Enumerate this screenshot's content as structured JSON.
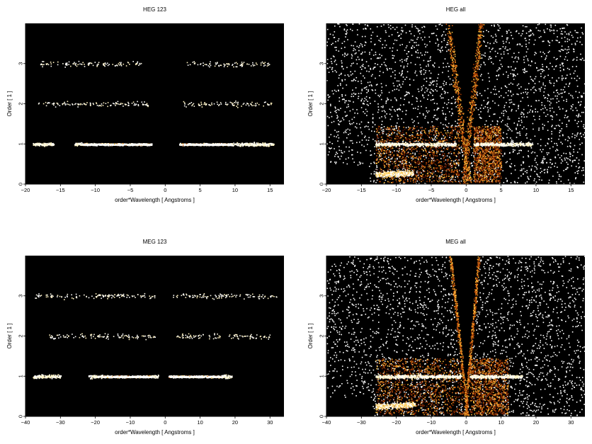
{
  "chart_data": [
    {
      "type": "heatmap",
      "title": "HEG 123",
      "xlabel": "order*Wavelength [ Angstroms ]",
      "ylabel": "Order [ 1 ]",
      "xlim": [
        -20,
        17
      ],
      "ylim": [
        0,
        4
      ],
      "xticks": [
        -20,
        -15,
        -10,
        -5,
        0,
        5,
        10,
        15
      ],
      "yticks": [
        0,
        1,
        2,
        3
      ],
      "background": "#000000",
      "bands": [
        {
          "order": 1,
          "x_ranges": [
            [
              -19,
              -16
            ],
            [
              -13,
              -2
            ],
            [
              2,
              15.5
            ]
          ],
          "dense_ranges": [
            [
              -12,
              -2
            ],
            [
              2,
              9.5
            ]
          ],
          "intensity": "bright"
        },
        {
          "order": 2,
          "x_ranges": [
            [
              -18.5,
              -2.5
            ],
            [
              2.5,
              15.5
            ]
          ],
          "intensity": "sparse"
        },
        {
          "order": 3,
          "x_ranges": [
            [
              -18,
              -3.5
            ],
            [
              3,
              15
            ]
          ],
          "dense_ranges": [
            [
              -7,
              -3.5
            ],
            [
              3,
              4.5
            ]
          ],
          "intensity": "sparse"
        }
      ]
    },
    {
      "type": "heatmap",
      "title": "HEG all",
      "xlabel": "order*Wavelength [ Angstroms ]",
      "ylabel": "Order [ 1 ]",
      "xlim": [
        -20,
        17
      ],
      "ylim": [
        0,
        4
      ],
      "xticks": [
        -20,
        -15,
        -10,
        -5,
        0,
        5,
        10,
        15
      ],
      "yticks": [
        0,
        1,
        2,
        3
      ],
      "background": "#000000",
      "bands": [
        {
          "order": 1,
          "x_ranges": [
            [
              -13,
              -1.5
            ],
            [
              1,
              9.5
            ]
          ],
          "intensity": "bright"
        }
      ],
      "diffuse_regions": [
        [
          -13,
          -1
        ],
        [
          1,
          5
        ]
      ],
      "gap_x": [
        -3,
        2.5
      ]
    },
    {
      "type": "heatmap",
      "title": "MEG 123",
      "xlabel": "order*Wavelength [ Angstroms ]",
      "ylabel": "Order [ 1 ]",
      "xlim": [
        -40,
        34
      ],
      "ylim": [
        0,
        4
      ],
      "xticks": [
        -40,
        -30,
        -20,
        -10,
        0,
        10,
        20,
        30
      ],
      "yticks": [
        0,
        1,
        2,
        3
      ],
      "background": "#000000",
      "bands": [
        {
          "order": 1,
          "x_ranges": [
            [
              -38,
              -30
            ],
            [
              -22,
              -2
            ],
            [
              1,
              19
            ]
          ],
          "dense_ranges": [
            [
              -18,
              -4
            ],
            [
              1,
              16
            ]
          ],
          "intensity": "bright"
        },
        {
          "order": 2,
          "x_ranges": [
            [
              -34,
              -3
            ],
            [
              3,
              30
            ]
          ],
          "intensity": "sparse"
        },
        {
          "order": 3,
          "x_ranges": [
            [
              -38,
              -3
            ],
            [
              2,
              32
            ]
          ],
          "intensity": "sparse"
        }
      ]
    },
    {
      "type": "heatmap",
      "title": "MEG all",
      "xlabel": "order*Wavelength [ Angstroms ]",
      "ylabel": "Order [ 1 ]",
      "xlim": [
        -40,
        34
      ],
      "ylim": [
        0,
        4
      ],
      "xticks": [
        -40,
        -30,
        -20,
        -10,
        0,
        10,
        20,
        30
      ],
      "yticks": [
        0,
        1,
        2,
        3
      ],
      "background": "#000000",
      "bands": [
        {
          "order": 1,
          "x_ranges": [
            [
              -26,
              -1.5
            ],
            [
              1,
              16
            ]
          ],
          "intensity": "bright"
        }
      ],
      "diffuse_regions": [
        [
          -26,
          -1
        ],
        [
          1,
          12
        ]
      ],
      "gap_x": [
        -5,
        4
      ]
    }
  ]
}
